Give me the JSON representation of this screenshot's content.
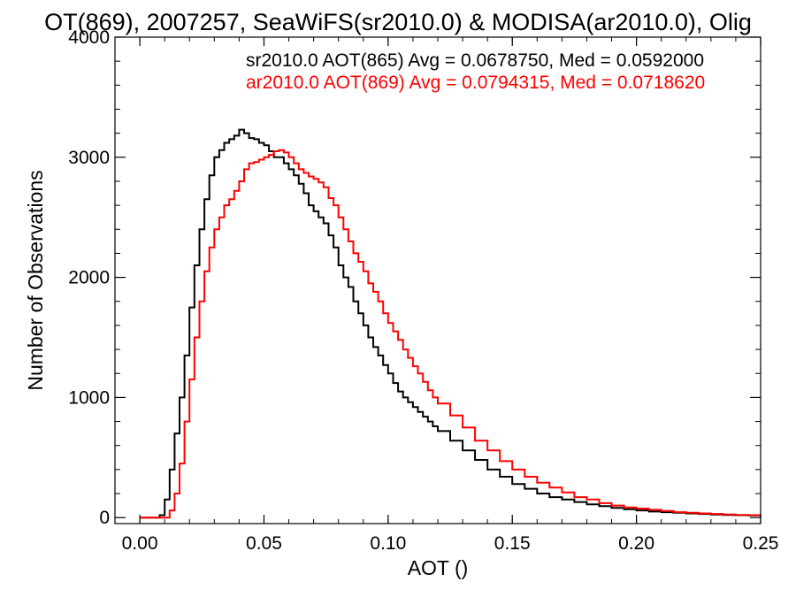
{
  "chart_data": {
    "type": "line",
    "title": "OT(869), 2007257, SeaWiFS(sr2010.0) & MODISA(ar2010.0), Olig",
    "xlabel": "AOT ()",
    "ylabel": "Number of Observations",
    "xlim": [
      -0.01,
      0.25
    ],
    "ylim": [
      -50,
      4000
    ],
    "grid": false,
    "legend_placement": "top-right",
    "x_ticks": [
      {
        "value": 0.0,
        "label": "0.00"
      },
      {
        "value": 0.05,
        "label": "0.05"
      },
      {
        "value": 0.1,
        "label": "0.10"
      },
      {
        "value": 0.15,
        "label": "0.15"
      },
      {
        "value": 0.2,
        "label": "0.20"
      },
      {
        "value": 0.25,
        "label": "0.25"
      }
    ],
    "y_ticks": [
      {
        "value": 0,
        "label": "0"
      },
      {
        "value": 1000,
        "label": "1000"
      },
      {
        "value": 2000,
        "label": "2000"
      },
      {
        "value": 3000,
        "label": "3000"
      },
      {
        "value": 4000,
        "label": "4000"
      }
    ],
    "series": [
      {
        "name": "sr2010.0 AOT(865) Avg = 0.0678750, Med = 0.0592000",
        "color": "#000000",
        "x": [
          0.0,
          0.005,
          0.008,
          0.01,
          0.012,
          0.014,
          0.016,
          0.018,
          0.02,
          0.022,
          0.024,
          0.026,
          0.028,
          0.03,
          0.032,
          0.034,
          0.036,
          0.038,
          0.04,
          0.042,
          0.044,
          0.046,
          0.048,
          0.05,
          0.052,
          0.054,
          0.056,
          0.058,
          0.06,
          0.062,
          0.064,
          0.066,
          0.068,
          0.07,
          0.072,
          0.074,
          0.076,
          0.078,
          0.08,
          0.082,
          0.084,
          0.086,
          0.088,
          0.09,
          0.092,
          0.094,
          0.096,
          0.098,
          0.1,
          0.102,
          0.104,
          0.106,
          0.108,
          0.11,
          0.112,
          0.114,
          0.116,
          0.118,
          0.12,
          0.125,
          0.13,
          0.135,
          0.14,
          0.145,
          0.15,
          0.155,
          0.16,
          0.165,
          0.17,
          0.175,
          0.18,
          0.185,
          0.19,
          0.195,
          0.2,
          0.205,
          0.21,
          0.215,
          0.22,
          0.225,
          0.23,
          0.235,
          0.24,
          0.245,
          0.25
        ],
        "values": [
          0,
          0,
          20,
          150,
          400,
          700,
          1000,
          1350,
          1750,
          2100,
          2400,
          2650,
          2850,
          3000,
          3060,
          3120,
          3150,
          3180,
          3230,
          3200,
          3160,
          3150,
          3120,
          3100,
          3050,
          3000,
          3000,
          2950,
          2900,
          2850,
          2780,
          2700,
          2600,
          2550,
          2500,
          2450,
          2350,
          2250,
          2100,
          2000,
          1920,
          1800,
          1700,
          1600,
          1500,
          1420,
          1350,
          1270,
          1200,
          1120,
          1050,
          1000,
          960,
          920,
          880,
          840,
          800,
          760,
          720,
          640,
          560,
          480,
          400,
          340,
          280,
          240,
          200,
          170,
          150,
          130,
          110,
          95,
          80,
          70,
          60,
          50,
          45,
          40,
          35,
          30,
          25,
          22,
          20,
          18,
          15
        ]
      },
      {
        "name": "ar2010.0 AOT(869) Avg = 0.0794315, Med = 0.0718620",
        "color": "#ff0000",
        "x": [
          0.0,
          0.005,
          0.008,
          0.01,
          0.012,
          0.014,
          0.016,
          0.018,
          0.02,
          0.022,
          0.024,
          0.026,
          0.028,
          0.03,
          0.032,
          0.034,
          0.036,
          0.038,
          0.04,
          0.042,
          0.044,
          0.046,
          0.048,
          0.05,
          0.052,
          0.054,
          0.056,
          0.058,
          0.06,
          0.062,
          0.064,
          0.066,
          0.068,
          0.07,
          0.072,
          0.074,
          0.076,
          0.078,
          0.08,
          0.082,
          0.084,
          0.086,
          0.088,
          0.09,
          0.092,
          0.094,
          0.096,
          0.098,
          0.1,
          0.102,
          0.104,
          0.106,
          0.108,
          0.11,
          0.112,
          0.114,
          0.116,
          0.118,
          0.12,
          0.125,
          0.13,
          0.135,
          0.14,
          0.145,
          0.15,
          0.155,
          0.16,
          0.165,
          0.17,
          0.175,
          0.18,
          0.185,
          0.19,
          0.195,
          0.2,
          0.205,
          0.21,
          0.215,
          0.22,
          0.225,
          0.23,
          0.235,
          0.24,
          0.245,
          0.25
        ],
        "values": [
          0,
          0,
          0,
          0,
          60,
          200,
          450,
          800,
          1150,
          1500,
          1800,
          2050,
          2250,
          2400,
          2500,
          2600,
          2650,
          2720,
          2800,
          2900,
          2950,
          2960,
          2980,
          3000,
          3020,
          3050,
          3060,
          3040,
          3000,
          2950,
          2900,
          2870,
          2840,
          2820,
          2790,
          2750,
          2660,
          2600,
          2500,
          2400,
          2300,
          2200,
          2130,
          2050,
          1950,
          1880,
          1800,
          1700,
          1620,
          1550,
          1480,
          1400,
          1330,
          1260,
          1200,
          1130,
          1060,
          1000,
          950,
          850,
          750,
          640,
          560,
          470,
          400,
          340,
          290,
          250,
          210,
          170,
          150,
          120,
          100,
          85,
          75,
          65,
          55,
          45,
          40,
          35,
          30,
          25,
          22,
          20,
          15
        ]
      }
    ]
  }
}
